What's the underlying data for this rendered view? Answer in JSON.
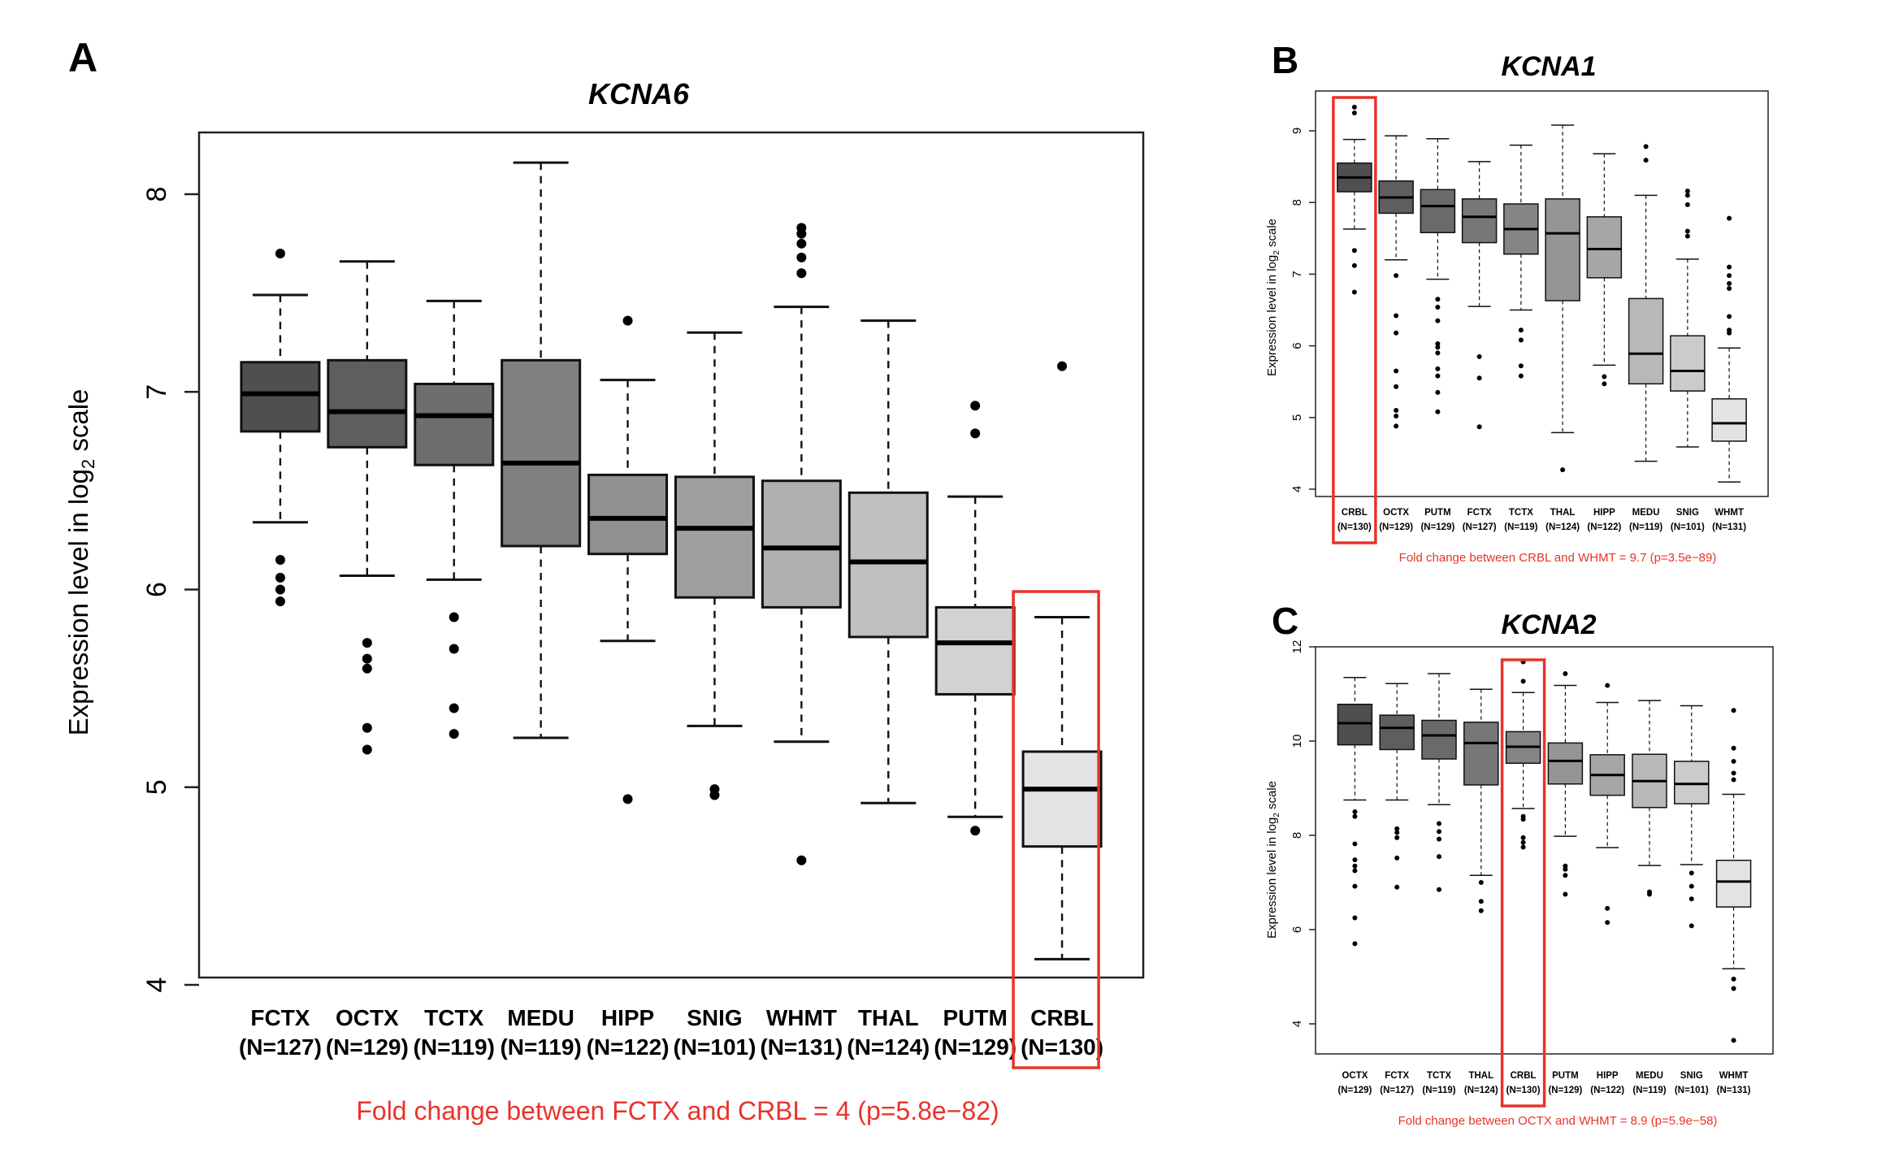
{
  "chart_data": [
    {
      "type": "box",
      "panel": "A",
      "title": "KCNA6",
      "ylabel": "Expression level in log2 scale",
      "ylabel_main": "Expression level in log",
      "ylabel_sub": "2",
      "ylabel_tail": " scale",
      "ylim": [
        4,
        8
      ],
      "yticks": [
        "4",
        "5",
        "6",
        "7",
        "8"
      ],
      "highlight": "CRBL",
      "note": "Fold change between FCTX and CRBL = 4 (p=5.8e−82)",
      "categories": [
        {
          "name": "FCTX",
          "n": "(N=127)",
          "fill": "#4f4f4f",
          "whisk_hi": 7.49,
          "q3": 7.15,
          "median": 6.99,
          "q1": 6.8,
          "whisk_lo": 6.34,
          "outliers": [
            7.7,
            6.15,
            6.06,
            6.0,
            5.94
          ]
        },
        {
          "name": "OCTX",
          "n": "(N=129)",
          "fill": "#5e5e5e",
          "whisk_hi": 7.66,
          "q3": 7.16,
          "median": 6.9,
          "q1": 6.72,
          "whisk_lo": 6.07,
          "outliers": [
            5.73,
            5.65,
            5.6,
            5.3,
            5.19
          ]
        },
        {
          "name": "TCTX",
          "n": "(N=119)",
          "fill": "#6e6e6e",
          "whisk_hi": 7.46,
          "q3": 7.04,
          "median": 6.88,
          "q1": 6.63,
          "whisk_lo": 6.05,
          "outliers": [
            5.86,
            5.7,
            5.4,
            5.27
          ]
        },
        {
          "name": "MEDU",
          "n": "(N=119)",
          "fill": "#808080",
          "whisk_hi": 8.16,
          "q3": 7.16,
          "median": 6.64,
          "q1": 6.22,
          "whisk_lo": 5.25,
          "outliers": []
        },
        {
          "name": "HIPP",
          "n": "(N=122)",
          "fill": "#909090",
          "whisk_hi": 7.06,
          "q3": 6.58,
          "median": 6.36,
          "q1": 6.18,
          "whisk_lo": 5.74,
          "outliers": [
            7.36,
            4.94
          ]
        },
        {
          "name": "SNIG",
          "n": "(N=101)",
          "fill": "#9f9f9f",
          "whisk_hi": 7.3,
          "q3": 6.57,
          "median": 6.31,
          "q1": 5.96,
          "whisk_lo": 5.31,
          "outliers": [
            4.99,
            4.96
          ]
        },
        {
          "name": "WHMT",
          "n": "(N=131)",
          "fill": "#b0b0b0",
          "whisk_hi": 7.43,
          "q3": 6.55,
          "median": 6.21,
          "q1": 5.91,
          "whisk_lo": 5.23,
          "outliers": [
            7.83,
            7.8,
            7.75,
            7.68,
            7.6,
            4.63
          ]
        },
        {
          "name": "THAL",
          "n": "(N=124)",
          "fill": "#c0c0c0",
          "whisk_hi": 7.36,
          "q3": 6.49,
          "median": 6.14,
          "q1": 5.76,
          "whisk_lo": 4.92,
          "outliers": []
        },
        {
          "name": "PUTM",
          "n": "(N=129)",
          "fill": "#d2d2d2",
          "whisk_hi": 6.47,
          "q3": 5.91,
          "median": 5.73,
          "q1": 5.47,
          "whisk_lo": 4.85,
          "outliers": [
            6.93,
            6.79,
            4.78
          ]
        },
        {
          "name": "CRBL",
          "n": "(N=130)",
          "fill": "#e3e3e3",
          "whisk_hi": 5.86,
          "q3": 5.18,
          "median": 4.99,
          "q1": 4.7,
          "whisk_lo": 4.13,
          "outliers": [
            7.13
          ]
        }
      ]
    },
    {
      "type": "box",
      "panel": "B",
      "title": "KCNA1",
      "ylabel": "Expression level in log2 scale",
      "ylabel_main": "Expression level in log",
      "ylabel_sub": "2",
      "ylabel_tail": " scale",
      "ylim": [
        4,
        9
      ],
      "yticks": [
        "4",
        "5",
        "6",
        "7",
        "8",
        "9"
      ],
      "highlight": "CRBL",
      "note": "Fold change between CRBL and WHMT = 9.7 (p=3.5e−89)",
      "categories": [
        {
          "name": "CRBL",
          "n": "(N=130)",
          "fill": "#4f4f4f",
          "whisk_hi": 8.88,
          "q3": 8.55,
          "median": 8.35,
          "q1": 8.15,
          "whisk_lo": 7.63,
          "outliers": [
            9.33,
            9.25,
            7.33,
            7.12,
            6.75
          ]
        },
        {
          "name": "OCTX",
          "n": "(N=129)",
          "fill": "#5e5e5e",
          "whisk_hi": 8.93,
          "q3": 8.3,
          "median": 8.07,
          "q1": 7.85,
          "whisk_lo": 7.2,
          "outliers": [
            6.98,
            6.42,
            6.18,
            5.65,
            5.43,
            5.1,
            5.02,
            4.88
          ]
        },
        {
          "name": "PUTM",
          "n": "(N=129)",
          "fill": "#6a6a6a",
          "whisk_hi": 8.89,
          "q3": 8.18,
          "median": 7.95,
          "q1": 7.58,
          "whisk_lo": 6.93,
          "outliers": [
            6.65,
            6.54,
            6.35,
            6.03,
            5.98,
            5.9,
            5.68,
            5.58,
            5.35,
            5.08
          ]
        },
        {
          "name": "FCTX",
          "n": "(N=127)",
          "fill": "#777777",
          "whisk_hi": 8.57,
          "q3": 8.05,
          "median": 7.8,
          "q1": 7.44,
          "whisk_lo": 6.55,
          "outliers": [
            5.85,
            5.55,
            4.87
          ]
        },
        {
          "name": "TCTX",
          "n": "(N=119)",
          "fill": "#858585",
          "whisk_hi": 8.8,
          "q3": 7.98,
          "median": 7.63,
          "q1": 7.28,
          "whisk_lo": 6.5,
          "outliers": [
            6.22,
            6.08,
            5.72,
            5.58
          ]
        },
        {
          "name": "THAL",
          "n": "(N=124)",
          "fill": "#959595",
          "whisk_hi": 9.08,
          "q3": 8.05,
          "median": 7.57,
          "q1": 6.63,
          "whisk_lo": 4.79,
          "outliers": [
            4.27
          ]
        },
        {
          "name": "HIPP",
          "n": "(N=122)",
          "fill": "#a6a6a6",
          "whisk_hi": 8.68,
          "q3": 7.8,
          "median": 7.35,
          "q1": 6.95,
          "whisk_lo": 5.73,
          "outliers": [
            5.57,
            5.47
          ]
        },
        {
          "name": "MEDU",
          "n": "(N=119)",
          "fill": "#b8b8b8",
          "whisk_hi": 8.1,
          "q3": 6.66,
          "median": 5.89,
          "q1": 5.47,
          "whisk_lo": 4.39,
          "outliers": [
            8.78,
            8.59
          ]
        },
        {
          "name": "SNIG",
          "n": "(N=101)",
          "fill": "#cbcbcb",
          "whisk_hi": 7.21,
          "q3": 6.14,
          "median": 5.65,
          "q1": 5.37,
          "whisk_lo": 4.59,
          "outliers": [
            8.16,
            8.1,
            7.97,
            7.6,
            7.53
          ]
        },
        {
          "name": "WHMT",
          "n": "(N=131)",
          "fill": "#e3e3e3",
          "whisk_hi": 5.97,
          "q3": 5.26,
          "median": 4.92,
          "q1": 4.67,
          "whisk_lo": 4.1,
          "outliers": [
            7.78,
            7.1,
            6.98,
            6.87,
            6.8,
            6.41,
            6.22,
            6.18
          ]
        }
      ]
    },
    {
      "type": "box",
      "panel": "C",
      "title": "KCNA2",
      "ylabel": "Expression level in log2 scale",
      "ylabel_main": "Expression level in log",
      "ylabel_sub": "2",
      "ylabel_tail": " scale",
      "ylim": [
        4,
        12
      ],
      "yticks": [
        "4",
        "6",
        "8",
        "10",
        "12"
      ],
      "highlight": "CRBL",
      "note": "Fold change between OCTX and WHMT = 8.9 (p=5.9e−58)",
      "categories": [
        {
          "name": "OCTX",
          "n": "(N=129)",
          "fill": "#4f4f4f",
          "whisk_hi": 11.35,
          "q3": 10.78,
          "median": 10.38,
          "q1": 9.92,
          "whisk_lo": 8.75,
          "outliers": [
            8.5,
            8.4,
            7.82,
            7.48,
            7.35,
            7.25,
            6.92,
            6.25,
            5.7
          ]
        },
        {
          "name": "FCTX",
          "n": "(N=127)",
          "fill": "#5e5e5e",
          "whisk_hi": 11.22,
          "q3": 10.55,
          "median": 10.28,
          "q1": 9.82,
          "whisk_lo": 8.75,
          "outliers": [
            8.14,
            8.06,
            7.95,
            7.52,
            6.9
          ]
        },
        {
          "name": "TCTX",
          "n": "(N=119)",
          "fill": "#6a6a6a",
          "whisk_hi": 11.43,
          "q3": 10.44,
          "median": 10.12,
          "q1": 9.62,
          "whisk_lo": 8.65,
          "outliers": [
            8.25,
            8.08,
            7.92,
            7.55,
            6.85
          ]
        },
        {
          "name": "THAL",
          "n": "(N=124)",
          "fill": "#777777",
          "whisk_hi": 11.1,
          "q3": 10.4,
          "median": 9.96,
          "q1": 9.07,
          "whisk_lo": 7.15,
          "outliers": [
            7.0,
            6.6,
            6.4
          ]
        },
        {
          "name": "CRBL",
          "n": "(N=130)",
          "fill": "#858585",
          "whisk_hi": 11.03,
          "q3": 10.2,
          "median": 9.88,
          "q1": 9.53,
          "whisk_lo": 8.57,
          "outliers": [
            11.68,
            11.27,
            8.4,
            8.34,
            7.95,
            7.85,
            7.75
          ]
        },
        {
          "name": "PUTM",
          "n": "(N=129)",
          "fill": "#959595",
          "whisk_hi": 11.18,
          "q3": 9.96,
          "median": 9.58,
          "q1": 9.09,
          "whisk_lo": 7.98,
          "outliers": [
            11.43,
            7.35,
            7.28,
            7.15,
            6.75
          ]
        },
        {
          "name": "HIPP",
          "n": "(N=122)",
          "fill": "#a6a6a6",
          "whisk_hi": 10.82,
          "q3": 9.71,
          "median": 9.28,
          "q1": 8.85,
          "whisk_lo": 7.74,
          "outliers": [
            11.18,
            6.45,
            6.15
          ]
        },
        {
          "name": "MEDU",
          "n": "(N=119)",
          "fill": "#b8b8b8",
          "whisk_hi": 10.86,
          "q3": 9.72,
          "median": 9.15,
          "q1": 8.59,
          "whisk_lo": 7.36,
          "outliers": [
            6.8,
            6.75
          ]
        },
        {
          "name": "SNIG",
          "n": "(N=101)",
          "fill": "#cbcbcb",
          "whisk_hi": 10.75,
          "q3": 9.57,
          "median": 9.09,
          "q1": 8.67,
          "whisk_lo": 7.38,
          "outliers": [
            7.2,
            6.92,
            6.65,
            6.08
          ]
        },
        {
          "name": "WHMT",
          "n": "(N=131)",
          "fill": "#e3e3e3",
          "whisk_hi": 8.87,
          "q3": 7.47,
          "median": 7.02,
          "q1": 6.48,
          "whisk_lo": 5.17,
          "outliers": [
            10.65,
            9.85,
            9.57,
            9.32,
            9.18,
            4.95,
            4.75,
            3.65
          ]
        }
      ]
    }
  ],
  "colors": {
    "highlight": "#e8332a",
    "note_text": "#e8332a",
    "median_line": "#000000",
    "frame": "#222222"
  }
}
